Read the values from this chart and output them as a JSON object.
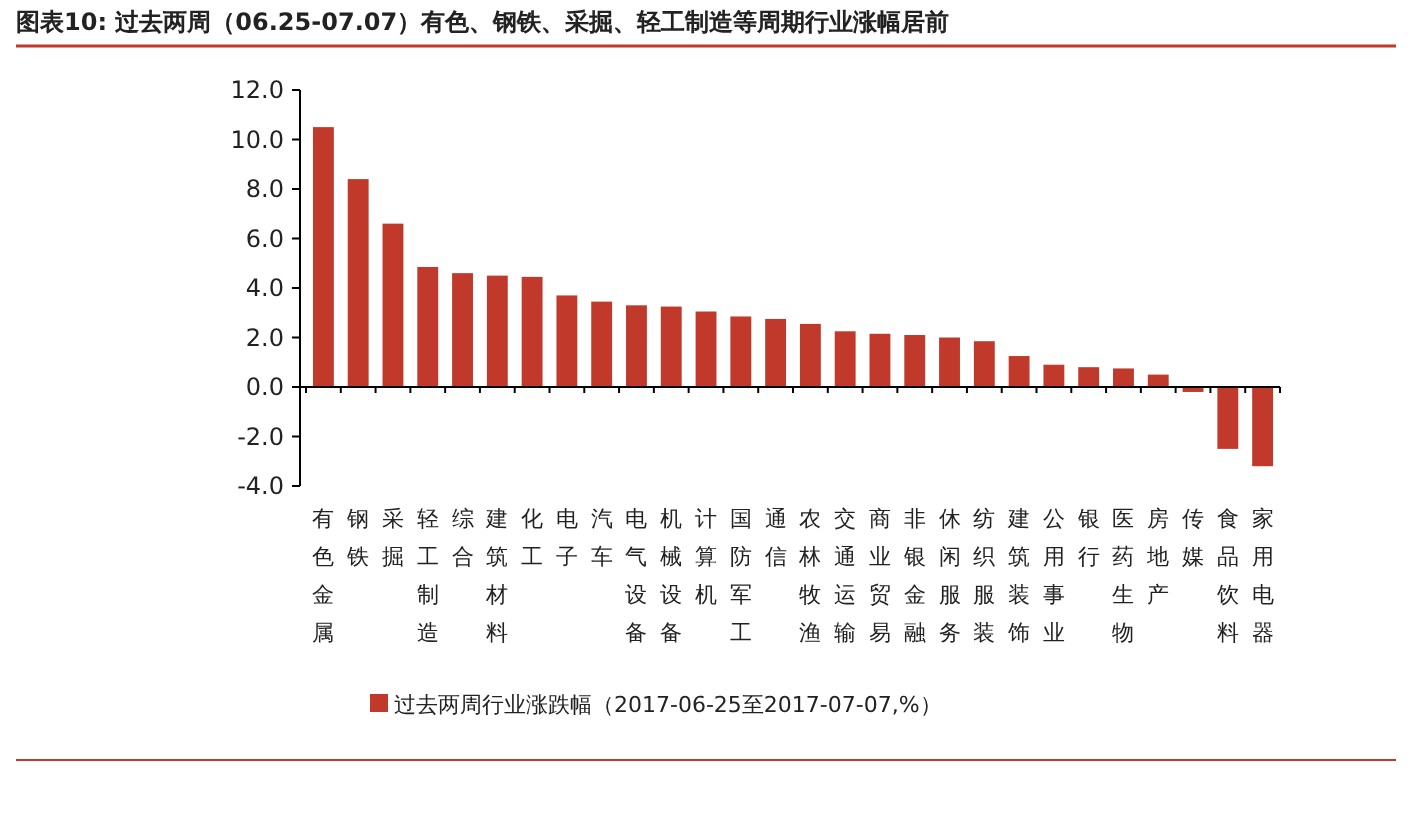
{
  "chart_data": {
    "type": "bar",
    "title": "图表10:  过去两周（06.25-07.07）有色、钢铁、采掘、轻工制造等周期行业涨幅居前",
    "categories": [
      "有色金属",
      "钢铁",
      "采掘",
      "轻工制造",
      "综合",
      "建筑材料",
      "化工",
      "电子",
      "汽车",
      "电气设备",
      "机械设备",
      "计算机",
      "国防军工",
      "通信",
      "农林牧渔",
      "交通运输",
      "商业贸易",
      "非银金融",
      "休闲服务",
      "纺织服装",
      "建筑装饰",
      "公用事业",
      "银行",
      "医药生物",
      "房地产",
      "传媒",
      "食品饮料",
      "家用电器"
    ],
    "series": [
      {
        "name": "过去两周行业涨跌幅（2017-06-25至2017-07-07,%）",
        "color": "#c0392b",
        "values": [
          10.5,
          8.4,
          6.6,
          4.85,
          4.6,
          4.5,
          4.45,
          3.7,
          3.45,
          3.3,
          3.25,
          3.05,
          2.85,
          2.75,
          2.55,
          2.25,
          2.15,
          2.1,
          2.0,
          1.85,
          1.25,
          0.9,
          0.8,
          0.75,
          0.5,
          -0.2,
          -2.5,
          -3.2
        ]
      }
    ],
    "ylim": [
      -4,
      12
    ],
    "yticks": [
      {
        "value": -4,
        "label": "-4.0"
      },
      {
        "value": -2,
        "label": "-2.0"
      },
      {
        "value": 0,
        "label": "0.0"
      },
      {
        "value": 2,
        "label": "2.0"
      },
      {
        "value": 4,
        "label": "4.0"
      },
      {
        "value": 6,
        "label": "6.0"
      },
      {
        "value": 8,
        "label": "8.0"
      },
      {
        "value": 10,
        "label": "10.0"
      },
      {
        "value": 12,
        "label": "12.0"
      }
    ],
    "legend": "bottom"
  }
}
